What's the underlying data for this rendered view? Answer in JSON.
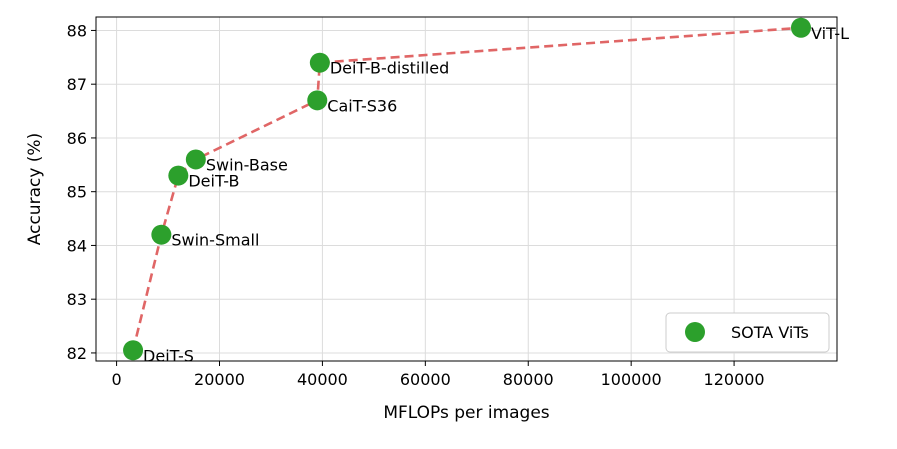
{
  "chart_data": {
    "type": "scatter",
    "xlabel": "MFLOPs per images",
    "ylabel": "Accuracy (%)",
    "xlim": [
      -4000,
      140000
    ],
    "ylim": [
      81.85,
      88.25
    ],
    "xticks": [
      0,
      20000,
      40000,
      60000,
      80000,
      100000,
      120000
    ],
    "yticks": [
      82,
      83,
      84,
      85,
      86,
      87,
      88
    ],
    "grid": true,
    "legend_position": "lower-right",
    "series": [
      {
        "name": "SOTA ViTs",
        "color": "#2ca02c",
        "points": [
          {
            "label": "DeiT-S",
            "x": 3200,
            "y": 82.05
          },
          {
            "label": "Swin-Small",
            "x": 8700,
            "y": 84.2
          },
          {
            "label": "DeiT-B",
            "x": 12000,
            "y": 85.3
          },
          {
            "label": "Swin-Base",
            "x": 15400,
            "y": 85.6
          },
          {
            "label": "CaiT-S36",
            "x": 39000,
            "y": 86.7
          },
          {
            "label": "DeiT-B-distilled",
            "x": 39500,
            "y": 87.4
          },
          {
            "label": "ViT-L",
            "x": 133000,
            "y": 88.05
          }
        ]
      }
    ],
    "line": {
      "style": "dashed",
      "color": "#e06666"
    }
  }
}
